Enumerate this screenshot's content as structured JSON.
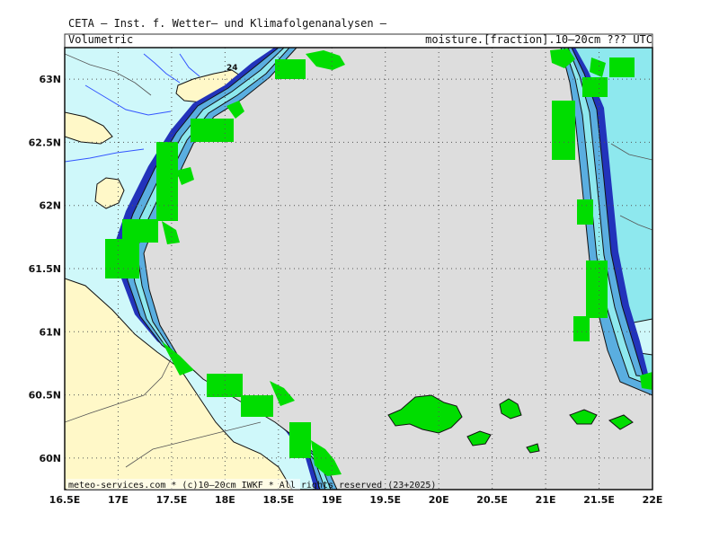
{
  "header": {
    "title": "CETA – Inst. f. Wetter– und Klimafolgenanalysen –",
    "subtitle_left": "Volumetric",
    "subtitle_right": "moisture.[fraction].10–20cm ??? UTC"
  },
  "footer": {
    "copyright": "meteo-services.com * (c)10–20cm IWKF * All rights reserved (23+2025)"
  },
  "map": {
    "lon_range": [
      16.5,
      22.0
    ],
    "lat_range": [
      59.75,
      63.25
    ],
    "x_ticks": [
      "16.5E",
      "17E",
      "17.5E",
      "18E",
      "18.5E",
      "19E",
      "19.5E",
      "20E",
      "20.5E",
      "21E",
      "21.5E",
      "22E"
    ],
    "y_ticks": [
      "60N",
      "60.5N",
      "61N",
      "61.5N",
      "62N",
      "62.5N",
      "63N"
    ],
    "grid": true,
    "point_label": "24",
    "colors": {
      "sea": "#dddddd",
      "land_dry": "#fff8c8",
      "moisture_light": "#cff8fa",
      "moisture_mid": "#8ee8ee",
      "moisture_high": "#5aaee0",
      "moisture_max": "#2233bb",
      "coast_fill": "#00dd00",
      "river": "#3355ff"
    }
  }
}
